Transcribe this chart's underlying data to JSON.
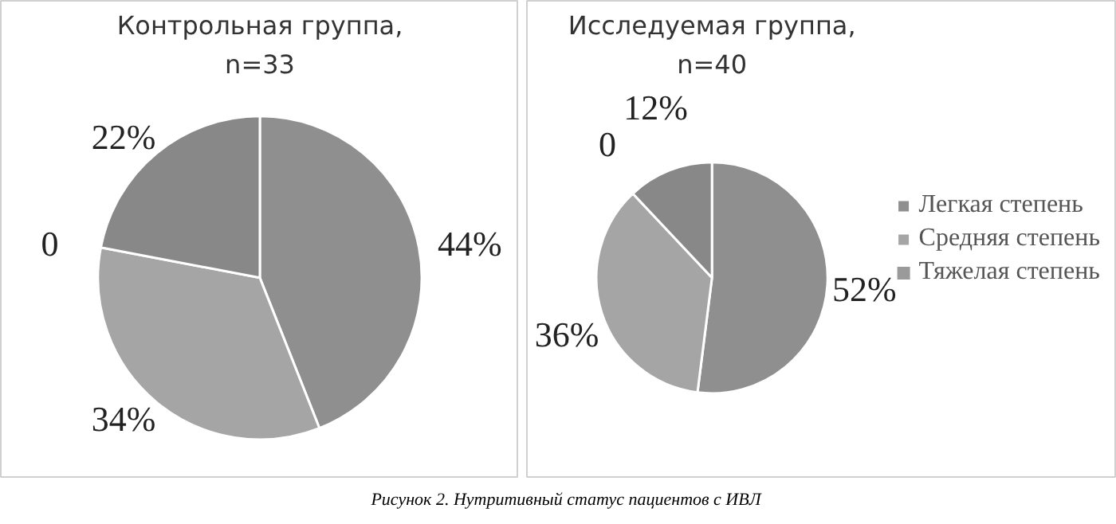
{
  "chart_data": [
    {
      "type": "pie",
      "title": "Контрольная группа,\nn=33",
      "categories": [
        "Легкая степень",
        "Средняя степень",
        "Тяжелая степень",
        null
      ],
      "values": [
        44,
        34,
        0,
        22
      ],
      "value_labels": [
        "44%",
        "34%",
        "0",
        "22%"
      ],
      "colors": [
        "#8f8f8f",
        "#a5a5a5",
        "#9a9a9a",
        "#888888"
      ],
      "legend": "right"
    },
    {
      "type": "pie",
      "title": "Исследуемая группа,\nn=40",
      "categories": [
        null,
        null,
        null,
        null
      ],
      "values": [
        52,
        36,
        0,
        12
      ],
      "value_labels": [
        "52%",
        "36%",
        "0",
        "12%"
      ],
      "colors": [
        "#8f8f8f",
        "#a5a5a5",
        "#9a9a9a",
        "#888888"
      ],
      "annotations": [
        "Рисунок 2. Нутритивный статус пациентов с ИВЛ"
      ]
    }
  ]
}
